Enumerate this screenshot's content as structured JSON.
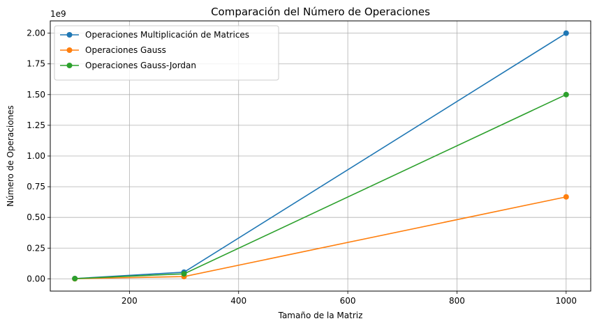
{
  "chart_data": {
    "type": "line",
    "title": "Comparación del Número de Operaciones",
    "xlabel": "Tamaño de la Matriz",
    "ylabel": "Número de Operaciones",
    "y_offset_label": "1e9",
    "x": [
      100,
      300,
      1000
    ],
    "xlim": [
      55,
      1045
    ],
    "ylim": [
      -0.1,
      2.1
    ],
    "xticks": [
      200,
      400,
      600,
      800,
      1000
    ],
    "yticks": [
      0.0,
      0.25,
      0.5,
      0.75,
      1.0,
      1.25,
      1.5,
      1.75,
      2.0
    ],
    "ytick_labels": [
      "0.00",
      "0.25",
      "0.50",
      "0.75",
      "1.00",
      "1.25",
      "1.50",
      "1.75",
      "2.00"
    ],
    "grid": true,
    "legend_position": "upper-left",
    "series": [
      {
        "name": "Operaciones Multiplicación de Matrices",
        "color": "#1f77b4",
        "values": [
          0.002,
          0.054,
          2.0
        ]
      },
      {
        "name": "Operaciones Gauss",
        "color": "#ff7f0e",
        "values": [
          0.00067,
          0.018,
          0.667
        ]
      },
      {
        "name": "Operaciones Gauss-Jordan",
        "color": "#2ca02c",
        "values": [
          0.0015,
          0.0405,
          1.5
        ]
      }
    ]
  }
}
